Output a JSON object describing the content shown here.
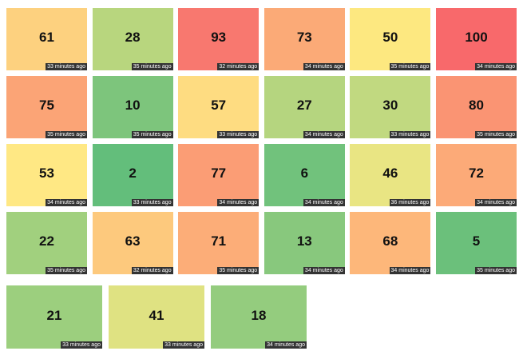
{
  "tiles": [
    {
      "value": 61,
      "time": "33 minutes ago",
      "color": "#fdd17f"
    },
    {
      "value": 28,
      "time": "35 minutes ago",
      "color": "#b8d67e"
    },
    {
      "value": 93,
      "time": "32 minutes ago",
      "color": "#f8786f"
    },
    {
      "value": 73,
      "time": "34 minutes ago",
      "color": "#fbaa77"
    },
    {
      "value": 50,
      "time": "35 minutes ago",
      "color": "#fde880"
    },
    {
      "value": 100,
      "time": "34 minutes ago",
      "color": "#f8696b"
    },
    {
      "value": 75,
      "time": "35 minutes ago",
      "color": "#fba476"
    },
    {
      "value": 10,
      "time": "35 minutes ago",
      "color": "#7dc57c"
    },
    {
      "value": 57,
      "time": "33 minutes ago",
      "color": "#fedc81"
    },
    {
      "value": 27,
      "time": "34 minutes ago",
      "color": "#b5d57f"
    },
    {
      "value": 30,
      "time": "33 minutes ago",
      "color": "#c1d980"
    },
    {
      "value": 80,
      "time": "35 minutes ago",
      "color": "#fa9473"
    },
    {
      "value": 53,
      "time": "34 minutes ago",
      "color": "#ffe884"
    },
    {
      "value": 2,
      "time": "33 minutes ago",
      "color": "#63be7b"
    },
    {
      "value": 77,
      "time": "34 minutes ago",
      "color": "#fb9d75"
    },
    {
      "value": 6,
      "time": "34 minutes ago",
      "color": "#71c27c"
    },
    {
      "value": 46,
      "time": "36 minutes ago",
      "color": "#e9e583"
    },
    {
      "value": 72,
      "time": "34 minutes ago",
      "color": "#fcaa78"
    },
    {
      "value": 22,
      "time": "35 minutes ago",
      "color": "#a1d07e"
    },
    {
      "value": 63,
      "time": "32 minutes ago",
      "color": "#fdc97d"
    },
    {
      "value": 71,
      "time": "35 minutes ago",
      "color": "#fcad78"
    },
    {
      "value": 13,
      "time": "34 minutes ago",
      "color": "#88c87d"
    },
    {
      "value": 68,
      "time": "34 minutes ago",
      "color": "#fdb77a"
    },
    {
      "value": 5,
      "time": "35 minutes ago",
      "color": "#6bc07b"
    },
    {
      "value": 21,
      "time": "33 minutes ago",
      "color": "#9ccf7e"
    },
    {
      "value": 41,
      "time": "33 minutes ago",
      "color": "#dfe282"
    },
    {
      "value": 18,
      "time": "34 minutes ago",
      "color": "#94cc7e"
    }
  ]
}
